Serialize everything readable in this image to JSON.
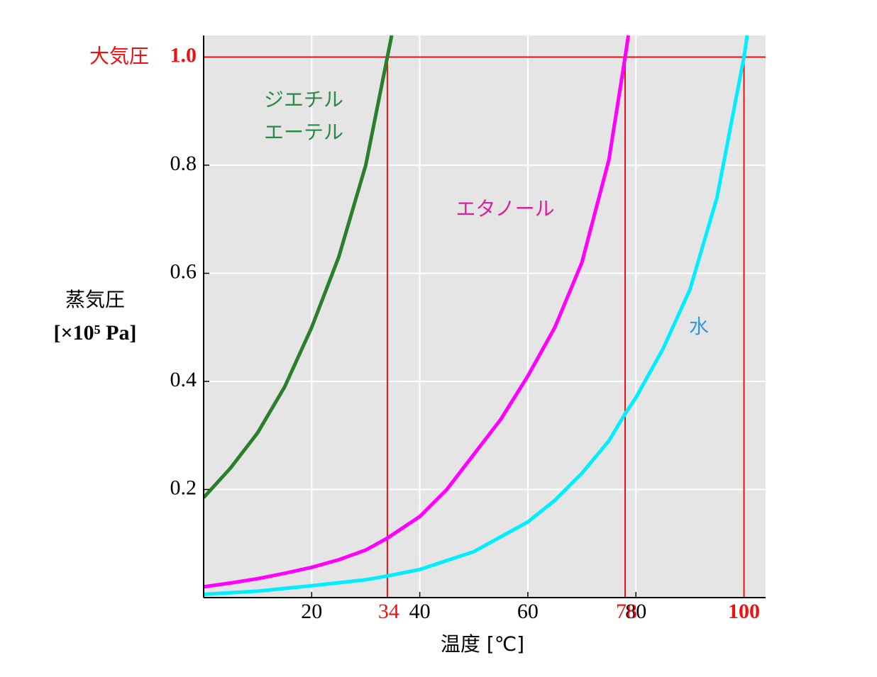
{
  "chart_data": {
    "type": "line",
    "x_label": "温度 [℃]",
    "y_label": [
      "蒸気圧",
      "[×10⁵ Pa]"
    ],
    "xlim": [
      0,
      104
    ],
    "ylim": [
      0,
      1.04
    ],
    "xticks": [
      20,
      40,
      60,
      80
    ],
    "yticks": [
      0.2,
      0.4,
      0.6,
      0.8
    ],
    "grid": true,
    "atmospheric": {
      "label": "大気圧",
      "value": 1,
      "value_label": "1.0",
      "color": "#ee1111"
    },
    "boiling_points": [
      34,
      78,
      100
    ],
    "series": [
      {
        "label": [
          "ジエチル",
          "エーテル"
        ],
        "color": "#2a7f2a",
        "label_color": "#2a8a44",
        "x": [
          0,
          5,
          10,
          15,
          20,
          25,
          30,
          34,
          34.8
        ],
        "values": [
          0.185,
          0.24,
          0.305,
          0.39,
          0.5,
          0.63,
          0.8,
          1.0,
          1.04
        ]
      },
      {
        "label": [
          "エタノール"
        ],
        "color": "#ff00ff",
        "label_color": "#e0209a",
        "x": [
          0,
          5,
          10,
          15,
          20,
          25,
          30,
          34,
          40,
          45,
          50,
          55,
          60,
          65,
          70,
          75,
          78,
          78.6
        ],
        "values": [
          0.02,
          0.027,
          0.035,
          0.045,
          0.056,
          0.07,
          0.088,
          0.11,
          0.15,
          0.2,
          0.265,
          0.33,
          0.41,
          0.5,
          0.62,
          0.81,
          1.0,
          1.04
        ]
      },
      {
        "label": [
          "水"
        ],
        "color": "#00eeff",
        "label_color": "#3399dd",
        "x": [
          0,
          10,
          20,
          30,
          34,
          40,
          50,
          60,
          65,
          70,
          75,
          78,
          80,
          85,
          90,
          95,
          100,
          100.6
        ],
        "values": [
          0.006,
          0.012,
          0.022,
          0.033,
          0.04,
          0.052,
          0.085,
          0.14,
          0.18,
          0.23,
          0.29,
          0.34,
          0.37,
          0.46,
          0.57,
          0.74,
          1.0,
          1.04
        ]
      }
    ]
  }
}
